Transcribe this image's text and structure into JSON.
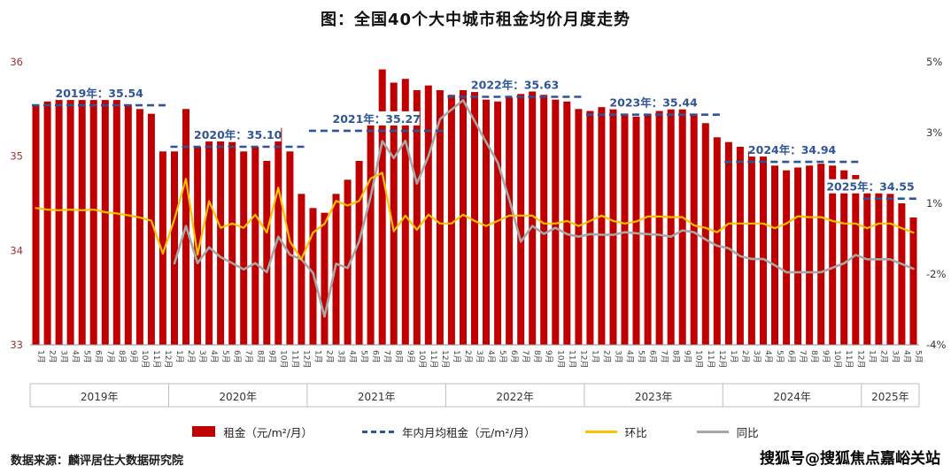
{
  "header": {
    "title": "图：全国40个大中城市租金均价月度走势"
  },
  "footer": {
    "source": "数据来源：麟评居住大数据研究院"
  },
  "watermark": "搜狐号@搜狐焦点嘉峪关站",
  "chart_data": {
    "type": "combo-bar-line",
    "left_axis": {
      "min": 33,
      "max": 36,
      "ticks": [
        36,
        35,
        34,
        33
      ]
    },
    "right_axis": {
      "min": -4,
      "max": 5,
      "ticks": [
        "5%",
        "3%",
        "1%",
        "-2%",
        "-4%"
      ]
    },
    "month_labels": [
      "1月",
      "2月",
      "3月",
      "4月",
      "5月",
      "6月",
      "7月",
      "8月",
      "9月",
      "10月",
      "11月",
      "12月"
    ],
    "years": [
      {
        "label": "2019年",
        "months": 12,
        "avg": 35.54,
        "annotation": "2019年：35.54"
      },
      {
        "label": "2020年",
        "months": 12,
        "avg": 35.1,
        "annotation": "2020年：35.10"
      },
      {
        "label": "2021年",
        "months": 12,
        "avg": 35.27,
        "annotation": "2021年：35.27"
      },
      {
        "label": "2022年",
        "months": 12,
        "avg": 35.63,
        "annotation": "2022年：35.63"
      },
      {
        "label": "2023年",
        "months": 12,
        "avg": 35.44,
        "annotation": "2023年：35.44"
      },
      {
        "label": "2024年",
        "months": 12,
        "avg": 34.94,
        "annotation": "2024年：34.94"
      },
      {
        "label": "2025年",
        "months": 5,
        "avg": 34.55,
        "annotation": "2025年：34.55"
      }
    ],
    "series": {
      "rent": {
        "name": "租金（元/m²/月）",
        "color": "#C00000",
        "values": [
          35.55,
          35.58,
          35.6,
          35.62,
          35.63,
          35.65,
          35.62,
          35.6,
          35.55,
          35.5,
          35.45,
          35.05,
          35.05,
          35.5,
          35.1,
          35.3,
          35.2,
          35.15,
          35.05,
          35.1,
          34.95,
          35.3,
          35.05,
          34.6,
          34.45,
          34.4,
          34.6,
          34.75,
          34.95,
          35.4,
          35.92,
          35.78,
          35.82,
          35.7,
          35.75,
          35.7,
          35.65,
          35.7,
          35.68,
          35.6,
          35.58,
          35.62,
          35.66,
          35.7,
          35.65,
          35.6,
          35.58,
          35.5,
          35.48,
          35.52,
          35.5,
          35.45,
          35.42,
          35.45,
          35.48,
          35.5,
          35.52,
          35.45,
          35.35,
          35.2,
          35.15,
          35.1,
          35.05,
          35.0,
          34.9,
          34.85,
          34.88,
          34.9,
          34.92,
          34.9,
          34.85,
          34.8,
          34.7,
          34.65,
          34.6,
          34.5,
          34.35
        ]
      },
      "avg": {
        "name": "年内月均租金（元/m²/月）",
        "color": "#2F5597"
      },
      "mom": {
        "name": "环比",
        "color": "#FFC000",
        "values": [
          0.35,
          0.3,
          0.28,
          0.3,
          0.28,
          0.3,
          0.22,
          0.18,
          0.12,
          0.05,
          -0.05,
          -1.1,
          0.0,
          1.28,
          -1.13,
          0.57,
          -0.28,
          -0.14,
          -0.28,
          0.14,
          -0.43,
          1.0,
          -0.71,
          -1.28,
          -0.43,
          -0.15,
          0.58,
          0.43,
          0.58,
          1.29,
          1.47,
          -0.39,
          0.11,
          -0.34,
          0.14,
          -0.14,
          -0.14,
          0.14,
          -0.06,
          -0.22,
          -0.06,
          0.11,
          0.11,
          0.11,
          -0.14,
          -0.14,
          -0.06,
          -0.22,
          -0.06,
          0.11,
          -0.06,
          -0.14,
          -0.08,
          0.08,
          0.08,
          0.06,
          0.06,
          -0.2,
          -0.28,
          -0.42,
          -0.14,
          -0.14,
          -0.14,
          -0.14,
          -0.29,
          -0.14,
          0.09,
          0.06,
          0.06,
          -0.06,
          -0.14,
          -0.14,
          -0.29,
          -0.14,
          -0.14,
          -0.29,
          -0.43
        ]
      },
      "yoy": {
        "name": "同比",
        "color": "#A6A6A6",
        "values": [
          null,
          null,
          null,
          null,
          null,
          null,
          null,
          null,
          null,
          null,
          null,
          null,
          -1.41,
          -0.22,
          -1.4,
          -0.9,
          -1.21,
          -1.4,
          -1.6,
          -1.4,
          -1.69,
          -0.56,
          -1.13,
          -1.28,
          -1.71,
          -3.1,
          -1.42,
          -1.56,
          -0.71,
          0.71,
          2.48,
          1.94,
          2.49,
          1.13,
          2.0,
          3.18,
          3.48,
          3.78,
          3.12,
          2.45,
          1.8,
          0.62,
          -0.72,
          -0.22,
          -0.47,
          -0.28,
          -0.48,
          -0.56,
          -0.48,
          -0.5,
          -0.5,
          -0.42,
          -0.45,
          -0.48,
          -0.5,
          -0.56,
          -0.36,
          -0.42,
          -0.65,
          -0.85,
          -0.93,
          -1.18,
          -1.27,
          -1.27,
          -1.47,
          -1.69,
          -1.69,
          -1.69,
          -1.69,
          -1.55,
          -1.41,
          -1.14,
          -1.28,
          -1.28,
          -1.28,
          -1.43,
          -1.58
        ]
      }
    }
  }
}
